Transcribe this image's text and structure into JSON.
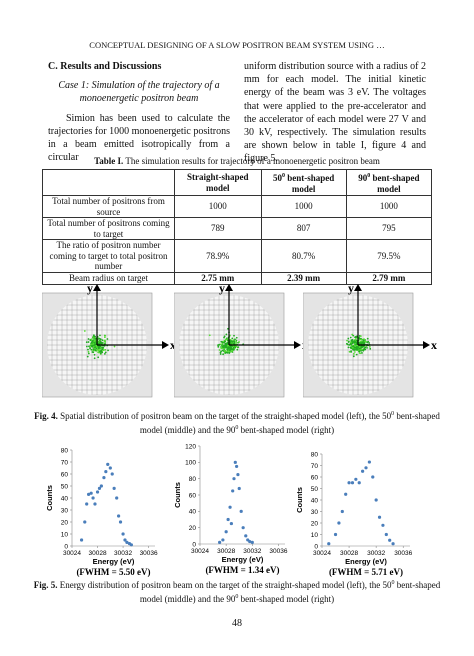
{
  "header": {
    "running_title": "CONCEPTUAL DESIGNING OF A SLOW POSITRON BEAM SYSTEM USING …"
  },
  "section": {
    "heading": "C. Results and Discussions",
    "case_title": "Case 1: Simulation of the trajectory of a monoenergetic positron beam",
    "paragraph_left": "Simion has been used to calculate the trajectories for 1000 monoenergetic positrons in a beam emitted isotropically from a circular",
    "paragraph_right": "uniform distribution source with a radius of 2 mm for each model. The initial kinetic energy of the beam was 3 eV. The voltages that were applied to the pre-accelerator and the accelerator of each model were 27 V and 30 kV, respectively. The simulation results are shown below in table I, figure 4 and figure 5."
  },
  "table": {
    "label": "Table I.",
    "caption": "The simulation results for trajectory of a monoenergetic positron beam",
    "columns": [
      {
        "parts": [
          {
            "text": "Straight-shaped model"
          }
        ]
      },
      {
        "parts": [
          {
            "text": "50"
          },
          {
            "text": "0",
            "style": "sup"
          },
          {
            "text": " bent-shaped model"
          }
        ]
      },
      {
        "parts": [
          {
            "text": "90"
          },
          {
            "text": "0",
            "style": "sup"
          },
          {
            "text": " bent-shaped model"
          }
        ]
      }
    ],
    "rows": [
      {
        "label": "Total number of positrons from source",
        "cells": [
          "1000",
          "1000",
          "1000"
        ]
      },
      {
        "label": "Total number of positrons coming to target",
        "cells": [
          "789",
          "807",
          "795"
        ]
      },
      {
        "label": "The ratio of positron number coming to target to total positron number",
        "cells": [
          "78.9%",
          "80.7%",
          "79.5%"
        ]
      },
      {
        "label": "Beam radius on target",
        "cells": [
          "2.75 mm",
          "2.39 mm",
          "2.79 mm"
        ],
        "style": "bold"
      }
    ]
  },
  "figure4": {
    "panels": [
      {
        "y_label": "y",
        "x_label": "x"
      },
      {
        "y_label": "y",
        "x_label": "x"
      },
      {
        "y_label": "y",
        "x_label": "x"
      }
    ],
    "label": "Fig. 4.",
    "caption_parts": [
      {
        "text": " Spatial distribution of positron beam on the target of the straight-shaped model (left), the 50"
      },
      {
        "text": "0",
        "style": "sup"
      },
      {
        "text": " bent-shaped model (middle) and the 90"
      },
      {
        "text": "0",
        "style": "sup"
      },
      {
        "text": " bent-shaped model (right)"
      }
    ]
  },
  "chart_data": [
    {
      "type": "scatter",
      "x_label": "Energy (eV)",
      "y_label": "Counts",
      "annotation": "(FWHM = 5.50 eV)",
      "xlim": [
        30024,
        30037
      ],
      "xticks": [
        30024,
        30028,
        30032,
        30036
      ],
      "ylim": [
        0,
        80
      ],
      "yticks": [
        0,
        10,
        20,
        30,
        40,
        50,
        60,
        70,
        80
      ],
      "series": [
        {
          "color": "#4a7ebb",
          "x": [
            30025.5,
            30026,
            30026.3,
            30026.6,
            30027,
            30027.3,
            30027.6,
            30028,
            30028.3,
            30028.6,
            30029,
            30029.3,
            30029.6,
            30030,
            30030.3,
            30030.6,
            30031,
            30031.3,
            30031.6,
            30032,
            30032.3,
            30032.6,
            30033,
            30033.3
          ],
          "values": [
            5,
            20,
            35,
            43,
            44,
            40,
            35,
            45,
            48,
            50,
            57,
            62,
            68,
            65,
            60,
            48,
            40,
            25,
            20,
            10,
            5,
            3,
            2,
            1
          ]
        }
      ]
    },
    {
      "type": "scatter",
      "x_label": "Energy (eV)",
      "y_label": "Counts",
      "annotation": "(FWHM = 1.34 eV)",
      "xlim": [
        30024,
        30037
      ],
      "xticks": [
        30024,
        30028,
        30032,
        30036
      ],
      "ylim": [
        0,
        120
      ],
      "yticks": [
        0,
        20,
        40,
        60,
        80,
        100,
        120
      ],
      "series": [
        {
          "color": "#4a7ebb",
          "x": [
            30027,
            30027.5,
            30028,
            30028.3,
            30028.6,
            30028.8,
            30029,
            30029.2,
            30029.4,
            30029.6,
            30029.8,
            30030,
            30030.3,
            30030.6,
            30031,
            30031.3,
            30031.6,
            30032
          ],
          "values": [
            2,
            5,
            15,
            30,
            45,
            25,
            65,
            80,
            100,
            95,
            85,
            68,
            40,
            20,
            10,
            5,
            3,
            2
          ]
        }
      ]
    },
    {
      "type": "scatter",
      "x_label": "Energy (eV)",
      "y_label": "Counts",
      "annotation": "(FWHM = 5.71 eV)",
      "xlim": [
        30024,
        30037
      ],
      "xticks": [
        30024,
        30028,
        30032,
        30036
      ],
      "ylim": [
        0,
        80
      ],
      "yticks": [
        0,
        10,
        20,
        30,
        40,
        50,
        60,
        70,
        80
      ],
      "series": [
        {
          "color": "#4a7ebb",
          "x": [
            30025,
            30026,
            30026.5,
            30027,
            30027.5,
            30028,
            30028.5,
            30029,
            30029.5,
            30030,
            30030.5,
            30031,
            30031.5,
            30032,
            30032.5,
            30033,
            30033.5,
            30034,
            30034.5
          ],
          "values": [
            2,
            10,
            20,
            30,
            45,
            55,
            55,
            58,
            55,
            65,
            68,
            73,
            60,
            40,
            25,
            18,
            10,
            5,
            2
          ]
        }
      ]
    }
  ],
  "figure5": {
    "label": "Fig. 5.",
    "caption_parts": [
      {
        "text": " Energy distribution of positron beam on the target of the straight-shaped model (left), the 50"
      },
      {
        "text": "0",
        "style": "sup"
      },
      {
        "text": " bent-shaped model (middle) and the 90"
      },
      {
        "text": "0",
        "style": "sup"
      },
      {
        "text": " bent-shaped model (right)"
      }
    ]
  },
  "page_number": "48"
}
